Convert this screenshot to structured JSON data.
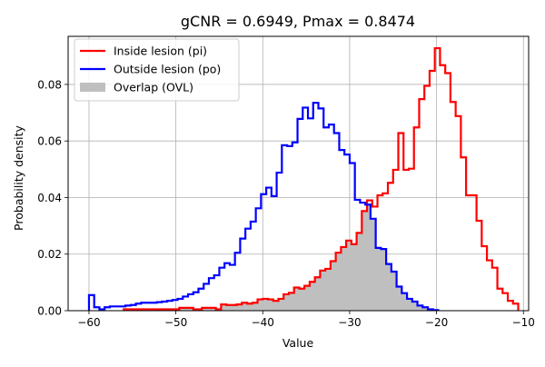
{
  "chart_data": {
    "type": "histogram",
    "title": "gCNR = 0.6949, Pmax = 0.8474",
    "xlabel": "Value",
    "ylabel": "Probability density",
    "xlim": [
      -62.4,
      -9.4
    ],
    "ylim": [
      0,
      0.097
    ],
    "xticks": [
      -60,
      -50,
      -40,
      -30,
      -20,
      -10
    ],
    "xtick_labels": [
      "−60",
      "−50",
      "−40",
      "−30",
      "−20",
      "−10"
    ],
    "yticks": [
      0.0,
      0.02,
      0.04,
      0.06,
      0.08
    ],
    "ytick_labels": [
      "0.00",
      "0.02",
      "0.04",
      "0.06",
      "0.08"
    ],
    "grid": true,
    "legend_position": "upper-left",
    "colors": {
      "inside": "#ff0000",
      "outside": "#0000ff",
      "overlap": "#bfbfbf",
      "grid": "#b0b0b0"
    },
    "series": [
      {
        "name": "Inside lesion (pi)",
        "style": "step",
        "color": "#ff0000",
        "x": [
          -56.0,
          -49.6,
          -48.0,
          -47.0,
          -46.0,
          -45.4,
          -44.8,
          -44.2,
          -43.6,
          -43.0,
          -42.4,
          -41.8,
          -41.2,
          -40.6,
          -40.0,
          -39.4,
          -38.8,
          -38.2,
          -37.6,
          -37.0,
          -36.4,
          -35.8,
          -35.2,
          -34.6,
          -34.0,
          -33.4,
          -32.8,
          -32.2,
          -31.6,
          -31.0,
          -30.4,
          -29.8,
          -29.2,
          -28.6,
          -28.0,
          -27.4,
          -26.8,
          -26.2,
          -25.6,
          -25.0,
          -24.4,
          -23.8,
          -23.2,
          -22.6,
          -22.0,
          -21.4,
          -20.8,
          -20.2,
          -19.6,
          -19.0,
          -18.4,
          -17.8,
          -17.2,
          -16.6,
          -16.0,
          -15.4,
          -14.8,
          -14.2,
          -13.6,
          -13.0,
          -12.4,
          -11.8,
          -11.2
        ],
        "y": [
          0.0005,
          0.001,
          0.0005,
          0.001,
          0.001,
          0.0005,
          0.0022,
          0.002,
          0.002,
          0.0022,
          0.0028,
          0.0025,
          0.0028,
          0.004,
          0.0042,
          0.004,
          0.0035,
          0.0042,
          0.0058,
          0.0063,
          0.0082,
          0.0078,
          0.0088,
          0.0102,
          0.0118,
          0.0142,
          0.0148,
          0.0175,
          0.0205,
          0.0225,
          0.0248,
          0.0235,
          0.0275,
          0.0352,
          0.039,
          0.0368,
          0.0408,
          0.0415,
          0.0452,
          0.0498,
          0.0628,
          0.0498,
          0.0502,
          0.0648,
          0.0748,
          0.0795,
          0.0848,
          0.0928,
          0.0868,
          0.084,
          0.0738,
          0.0688,
          0.0542,
          0.0408,
          0.0408,
          0.0318,
          0.0228,
          0.0178,
          0.0152,
          0.0078,
          0.0062,
          0.0035,
          0.0025
        ]
      },
      {
        "name": "Outside lesion (po)",
        "style": "step",
        "color": "#0000ff",
        "x": [
          -60.0,
          -59.4,
          -58.8,
          -58.2,
          -57.6,
          -57.0,
          -56.4,
          -55.8,
          -55.2,
          -54.6,
          -54.0,
          -53.4,
          -52.8,
          -52.2,
          -51.6,
          -51.0,
          -50.4,
          -49.8,
          -49.2,
          -48.6,
          -48.0,
          -47.4,
          -46.8,
          -46.2,
          -45.6,
          -45.0,
          -44.4,
          -43.8,
          -43.2,
          -42.6,
          -42.0,
          -41.4,
          -40.8,
          -40.2,
          -39.6,
          -39.0,
          -38.4,
          -37.8,
          -37.2,
          -36.6,
          -36.0,
          -35.4,
          -34.8,
          -34.2,
          -33.6,
          -33.0,
          -32.4,
          -31.8,
          -31.2,
          -30.6,
          -30.0,
          -29.4,
          -28.8,
          -28.2,
          -27.6,
          -27.0,
          -26.4,
          -25.8,
          -25.2,
          -24.6,
          -24.0,
          -23.4,
          -22.8,
          -22.2,
          -21.6,
          -21.0,
          -20.4
        ],
        "y": [
          0.0055,
          0.0012,
          0.0005,
          0.0012,
          0.0015,
          0.0015,
          0.0015,
          0.0018,
          0.002,
          0.0025,
          0.0028,
          0.0028,
          0.0028,
          0.003,
          0.0032,
          0.0035,
          0.0038,
          0.0042,
          0.005,
          0.0058,
          0.0065,
          0.0078,
          0.0095,
          0.0115,
          0.0125,
          0.0152,
          0.0168,
          0.0162,
          0.0205,
          0.0255,
          0.029,
          0.0315,
          0.0362,
          0.0412,
          0.0435,
          0.0405,
          0.0488,
          0.0585,
          0.0582,
          0.0595,
          0.0678,
          0.0718,
          0.068,
          0.0735,
          0.0715,
          0.0648,
          0.0658,
          0.0628,
          0.0568,
          0.0552,
          0.0522,
          0.0392,
          0.0382,
          0.0375,
          0.0325,
          0.0222,
          0.0218,
          0.0165,
          0.0138,
          0.0085,
          0.0062,
          0.0042,
          0.0032,
          0.0018,
          0.0012,
          0.0005,
          0.0002
        ]
      }
    ],
    "overlap_label": "Overlap (OVL)"
  }
}
